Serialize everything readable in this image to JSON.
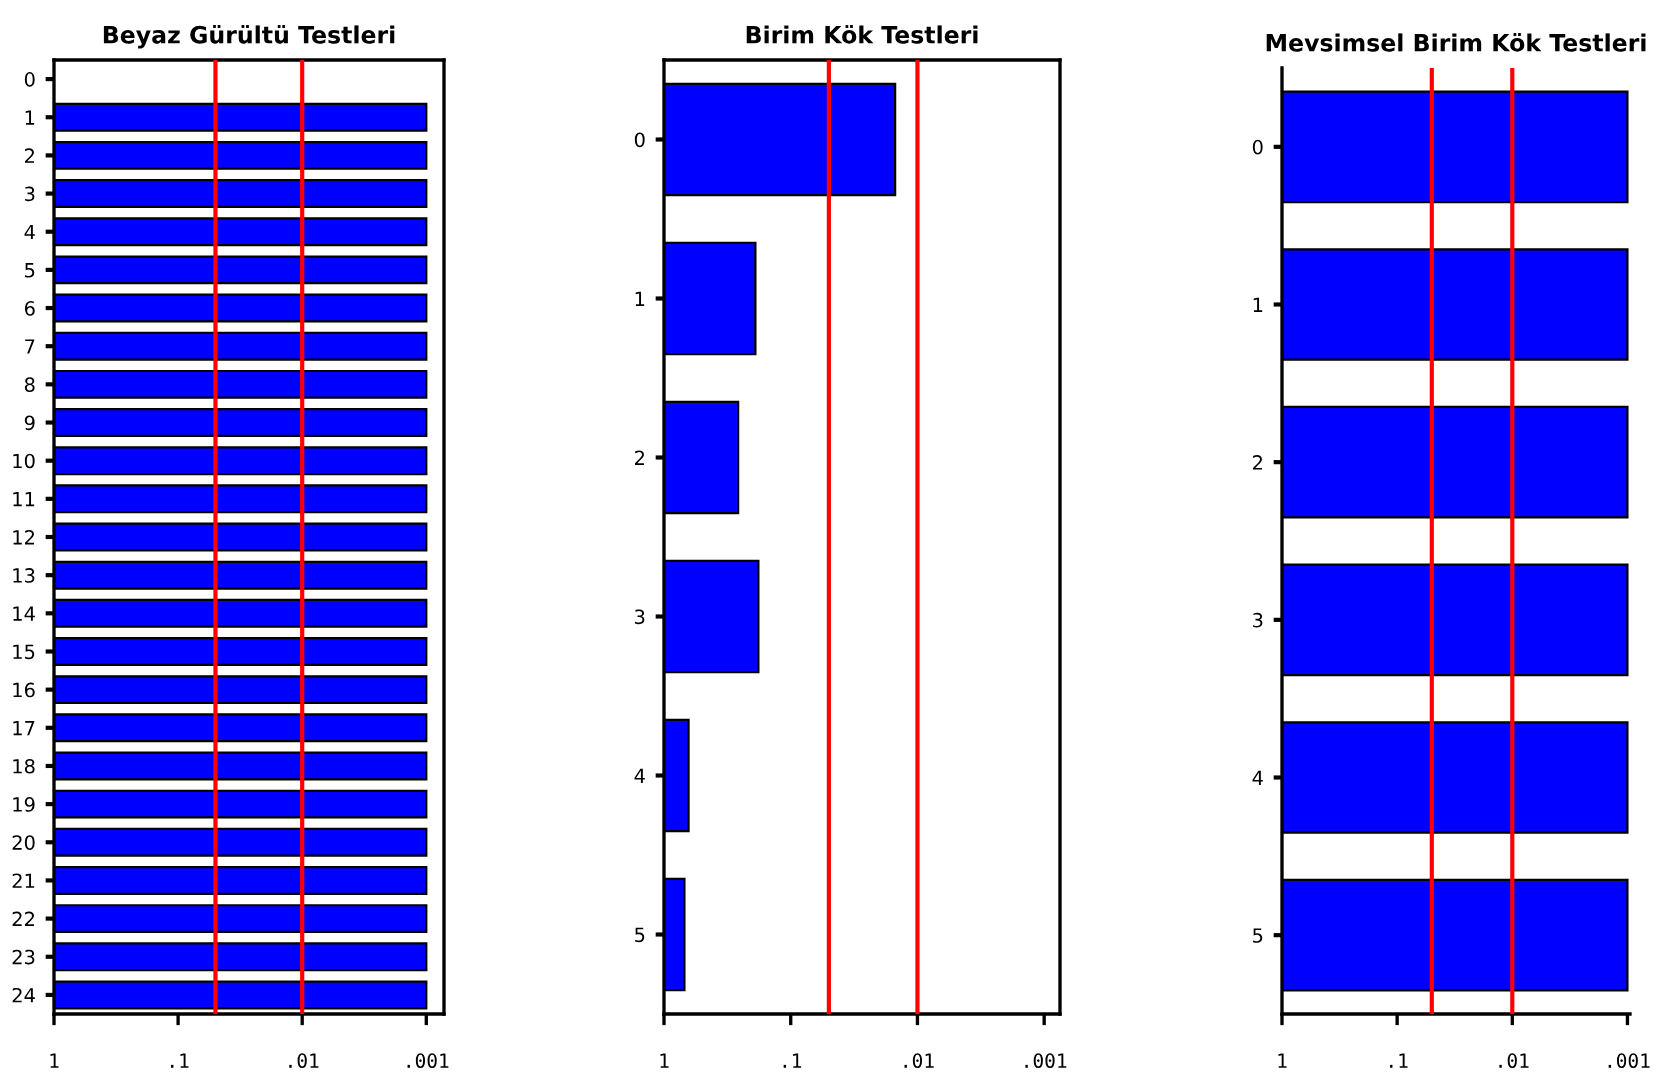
{
  "chart_data": [
    {
      "type": "bar",
      "orientation": "horizontal",
      "title": "Beyaz Gürültü Testleri",
      "log": "x",
      "categories": [
        "0",
        "1",
        "2",
        "3",
        "4",
        "5",
        "6",
        "7",
        "8",
        "9",
        "10",
        "11",
        "12",
        "13",
        "14",
        "15",
        "16",
        "17",
        "18",
        "19",
        "20",
        "21",
        "22",
        "23",
        "24"
      ],
      "values": [
        null,
        -0.999,
        -0.999,
        -0.999,
        -0.999,
        -0.999,
        -0.999,
        -0.999,
        -0.999,
        -0.999,
        -0.999,
        -0.999,
        -0.999,
        -0.999,
        -0.999,
        -0.999,
        -0.999,
        -0.999,
        -0.999,
        -0.999,
        -0.999,
        -0.999,
        -0.999,
        -0.999,
        -0.999
      ],
      "base": [
        null,
        1,
        1,
        1,
        1,
        1,
        1,
        1,
        1,
        1,
        1,
        1,
        1,
        1,
        1,
        1,
        1,
        1,
        1,
        1,
        1,
        1,
        1,
        1,
        1
      ],
      "color": "#0000ff",
      "xlim": [
        1,
        0.00072
      ],
      "xticks": [
        {
          "value": 1,
          "label": "1"
        },
        {
          "value": 0.1,
          "label": ".1"
        },
        {
          "value": 0.01,
          "label": ".01"
        },
        {
          "value": 0.001,
          "label": ".001"
        }
      ],
      "ref_lines": [
        {
          "axis": "x",
          "value": 0.05,
          "color": "#ff0000"
        },
        {
          "axis": "x",
          "value": 0.01,
          "color": "#ff0000"
        }
      ]
    },
    {
      "type": "bar",
      "orientation": "horizontal",
      "title": "Birim Kök Testleri",
      "log": "x",
      "categories": [
        "0",
        "1",
        "2",
        "3",
        "4",
        "5"
      ],
      "values": [
        -0.985,
        -0.81,
        -0.74,
        -0.82,
        -0.36,
        -0.31
      ],
      "base": [
        1,
        1,
        1,
        1,
        1,
        1
      ],
      "color": "#0000ff",
      "xlim": [
        1,
        0.00075
      ],
      "xticks": [
        {
          "value": 1,
          "label": "1"
        },
        {
          "value": 0.1,
          "label": ".1"
        },
        {
          "value": 0.01,
          "label": ".01"
        },
        {
          "value": 0.001,
          "label": ".001"
        }
      ],
      "ref_lines": [
        {
          "axis": "x",
          "value": 0.05,
          "color": "#ff0000"
        },
        {
          "axis": "x",
          "value": 0.01,
          "color": "#ff0000"
        }
      ]
    },
    {
      "type": "bar",
      "orientation": "horizontal",
      "title": "Mevsimsel Birim Kök Testleri",
      "log": "x",
      "categories": [
        "0",
        "1",
        "2",
        "3",
        "4",
        "5"
      ],
      "values": [
        -0.999,
        -0.999,
        -0.999,
        -0.999,
        -0.999,
        -0.999
      ],
      "base": [
        1,
        1,
        1,
        1,
        1,
        1
      ],
      "color": "#0000ff",
      "xlim": [
        1,
        0.00095
      ],
      "xticks": [
        {
          "value": 1,
          "label": "1"
        },
        {
          "value": 0.1,
          "label": ".1"
        },
        {
          "value": 0.01,
          "label": ".01"
        },
        {
          "value": 0.001,
          "label": ".001"
        }
      ],
      "ref_lines": [
        {
          "axis": "x",
          "value": 0.05,
          "color": "#ff0000"
        },
        {
          "axis": "x",
          "value": 0.01,
          "color": "#ff0000"
        }
      ]
    }
  ]
}
